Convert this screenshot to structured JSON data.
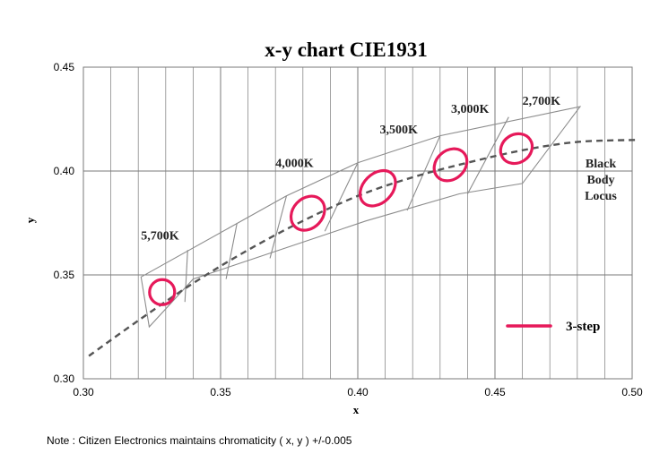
{
  "chart_data": {
    "type": "scatter",
    "title": "x-y chart  CIE1931",
    "xlabel": "x",
    "ylabel": "y",
    "xlim": [
      0.3,
      0.5
    ],
    "ylim": [
      0.3,
      0.45
    ],
    "x_ticks": [
      "0.30",
      "0.35",
      "0.40",
      "0.45",
      "0.50"
    ],
    "y_ticks": [
      "0.30",
      "0.35",
      "0.40",
      "0.45"
    ],
    "grid": true,
    "colors": {
      "ellipse": "#e6195a",
      "bins": "#8c8c8c",
      "locus": "#555555"
    },
    "black_body_locus": {
      "label_lines": [
        "Black",
        "Body",
        "Locus"
      ],
      "points": [
        [
          0.302,
          0.311
        ],
        [
          0.32,
          0.328
        ],
        [
          0.34,
          0.346
        ],
        [
          0.36,
          0.362
        ],
        [
          0.38,
          0.376
        ],
        [
          0.4,
          0.388
        ],
        [
          0.42,
          0.397
        ],
        [
          0.44,
          0.404
        ],
        [
          0.46,
          0.41
        ],
        [
          0.48,
          0.414
        ],
        [
          0.502,
          0.415
        ]
      ]
    },
    "bin_outline": [
      [
        0.321,
        0.349
      ],
      [
        0.374,
        0.388
      ],
      [
        0.4,
        0.404
      ],
      [
        0.43,
        0.417
      ],
      [
        0.481,
        0.431
      ],
      [
        0.46,
        0.394
      ],
      [
        0.437,
        0.389
      ],
      [
        0.403,
        0.376
      ],
      [
        0.34,
        0.348
      ],
      [
        0.324,
        0.325
      ]
    ],
    "bin_dividers": [
      [
        [
          0.338,
          0.362
        ],
        [
          0.337,
          0.337
        ]
      ],
      [
        [
          0.356,
          0.375
        ],
        [
          0.352,
          0.348
        ]
      ],
      [
        [
          0.374,
          0.388
        ],
        [
          0.368,
          0.358
        ]
      ],
      [
        [
          0.4,
          0.404
        ],
        [
          0.388,
          0.371
        ]
      ],
      [
        [
          0.43,
          0.417
        ],
        [
          0.418,
          0.381
        ]
      ],
      [
        [
          0.455,
          0.426
        ],
        [
          0.44,
          0.389
        ]
      ]
    ],
    "bins": [
      {
        "label": "5,700K",
        "label_at": [
          0.321,
          0.367
        ],
        "ellipse": {
          "cx": 0.3287,
          "cy": 0.3417,
          "rx": 0.0046,
          "ry": 0.006,
          "angle": -45
        }
      },
      {
        "label": "4,000K",
        "label_at": [
          0.37,
          0.402
        ],
        "ellipse": {
          "cx": 0.3818,
          "cy": 0.3797,
          "rx": 0.0068,
          "ry": 0.0072,
          "angle": -47
        }
      },
      {
        "label": "3,500K",
        "label_at": [
          0.408,
          0.418
        ],
        "ellipse": {
          "cx": 0.4073,
          "cy": 0.3917,
          "rx": 0.0074,
          "ry": 0.007,
          "angle": -45
        }
      },
      {
        "label": "3,000K",
        "label_at": [
          0.434,
          0.428
        ],
        "ellipse": {
          "cx": 0.4338,
          "cy": 0.403,
          "rx": 0.0065,
          "ry": 0.0069,
          "angle": -42
        }
      },
      {
        "label": "2,700K",
        "label_at": [
          0.46,
          0.432
        ],
        "ellipse": {
          "cx": 0.4578,
          "cy": 0.4108,
          "rx": 0.006,
          "ry": 0.0068,
          "angle": -33
        }
      }
    ],
    "legend": {
      "label": "3-step",
      "position": "bottom-right"
    }
  },
  "note": "Note : Citizen Electronics maintains chromaticity ( x, y ) +/-0.005"
}
